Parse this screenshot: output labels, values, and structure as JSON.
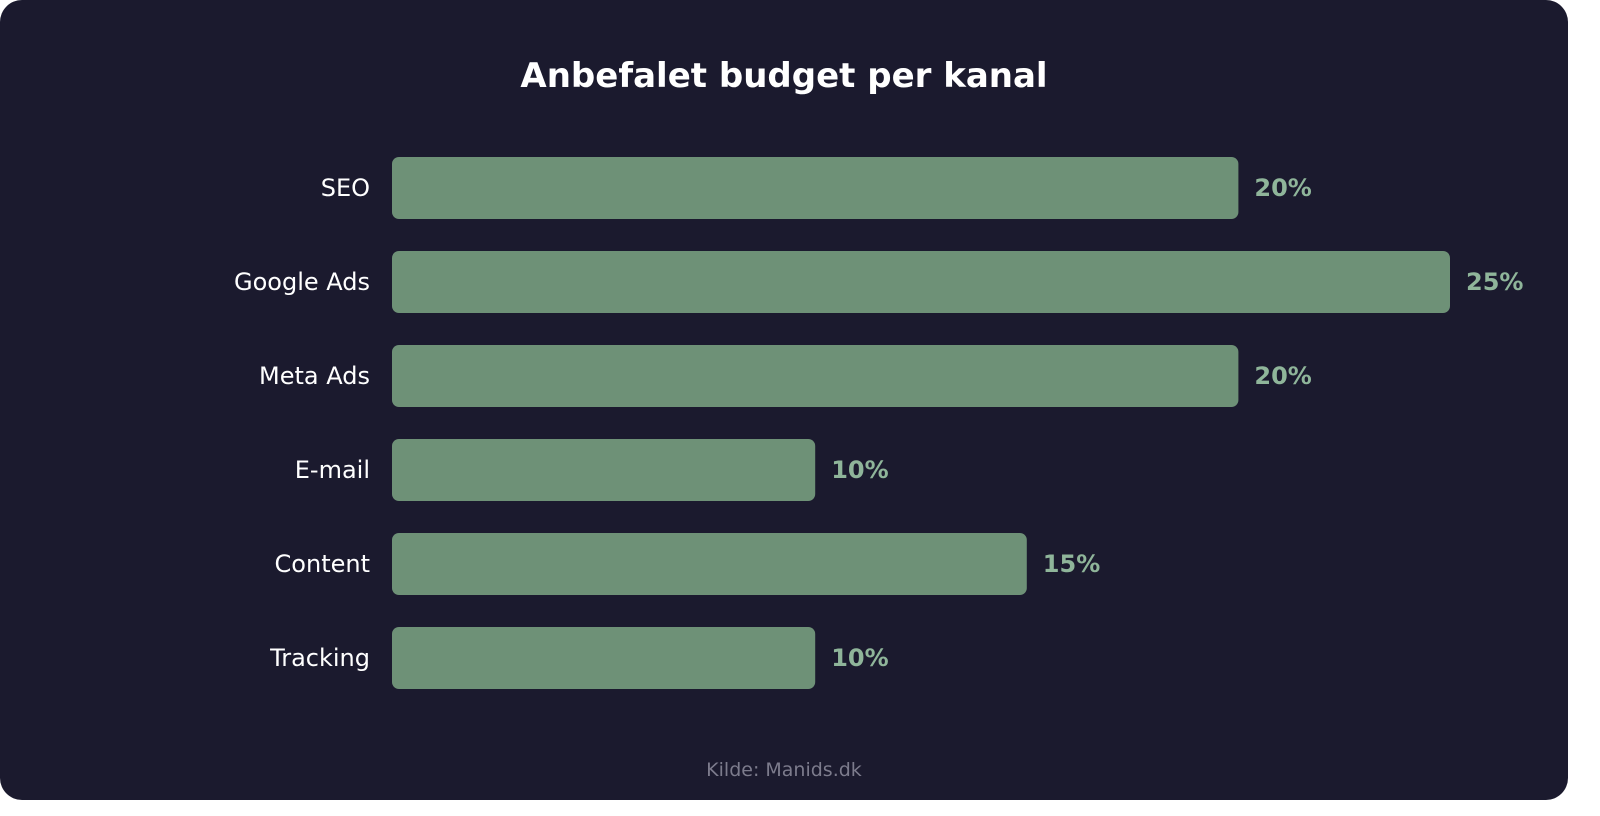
{
  "chart_data": {
    "type": "bar",
    "orientation": "horizontal",
    "title": "Anbefalet budget per kanal",
    "categories": [
      "SEO",
      "Google Ads",
      "Meta Ads",
      "E-mail",
      "Content",
      "Tracking"
    ],
    "values": [
      20,
      25,
      20,
      10,
      15,
      10
    ],
    "value_labels": [
      "20%",
      "25%",
      "20%",
      "10%",
      "15%",
      "10%"
    ],
    "unit": "%",
    "xlim": [
      0,
      25
    ],
    "grid": false,
    "source": "Kilde: Manids.dk"
  },
  "colors": {
    "background": "#1b1a2e",
    "bar": "#6e9177",
    "value_label": "#8fb59a",
    "category_label": "#ffffff",
    "title": "#ffffff",
    "source": "#7c7b8c"
  }
}
